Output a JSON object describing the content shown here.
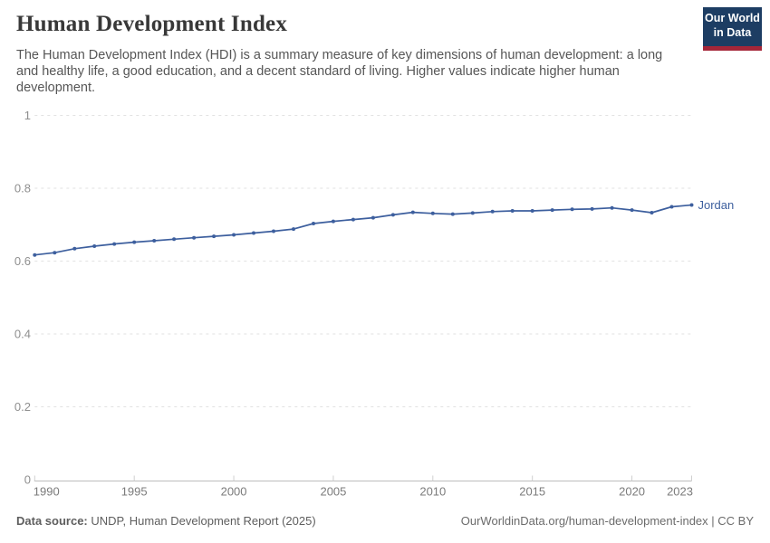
{
  "header": {
    "title": "Human Development Index",
    "subtitle": "The Human Development Index (HDI) is a summary measure of key dimensions of human development: a long and healthy life, a good education, and a decent standard of living. Higher values indicate higher human development.",
    "logo": {
      "line1": "Our World",
      "line2": "in Data",
      "bg_color": "#1d3d63",
      "accent_color": "#a52639"
    }
  },
  "chart_data": {
    "type": "line",
    "title": "Human Development Index",
    "entity": "Jordan",
    "end_label": "Jordan",
    "line_color": "#3d5f9e",
    "grid": "horizontal-dashed",
    "legend_position": "end-of-line",
    "xlabel": "",
    "ylabel": "",
    "ylim": [
      0,
      1
    ],
    "yticks": [
      0,
      0.2,
      0.4,
      0.6,
      0.8,
      1
    ],
    "ytick_labels": [
      "0",
      "0.2",
      "0.4",
      "0.6",
      "0.8",
      "1"
    ],
    "xticks": [
      1990,
      1995,
      2000,
      2005,
      2010,
      2015,
      2020,
      2023
    ],
    "x": [
      1990,
      1991,
      1992,
      1993,
      1994,
      1995,
      1996,
      1997,
      1998,
      1999,
      2000,
      2001,
      2002,
      2003,
      2004,
      2005,
      2006,
      2007,
      2008,
      2009,
      2010,
      2011,
      2012,
      2013,
      2014,
      2015,
      2016,
      2017,
      2018,
      2019,
      2020,
      2021,
      2022,
      2023
    ],
    "series": [
      {
        "name": "Jordan",
        "values": [
          0.617,
          0.623,
          0.634,
          0.641,
          0.647,
          0.652,
          0.656,
          0.66,
          0.664,
          0.668,
          0.672,
          0.677,
          0.682,
          0.688,
          0.703,
          0.709,
          0.714,
          0.719,
          0.727,
          0.734,
          0.731,
          0.729,
          0.732,
          0.736,
          0.738,
          0.738,
          0.74,
          0.742,
          0.743,
          0.746,
          0.74,
          0.733,
          0.749,
          0.754
        ]
      }
    ]
  },
  "footer": {
    "datasource_label": "Data source:",
    "datasource_value": " UNDP, Human Development Report (2025)",
    "attribution": "OurWorldinData.org/human-development-index | CC BY"
  }
}
